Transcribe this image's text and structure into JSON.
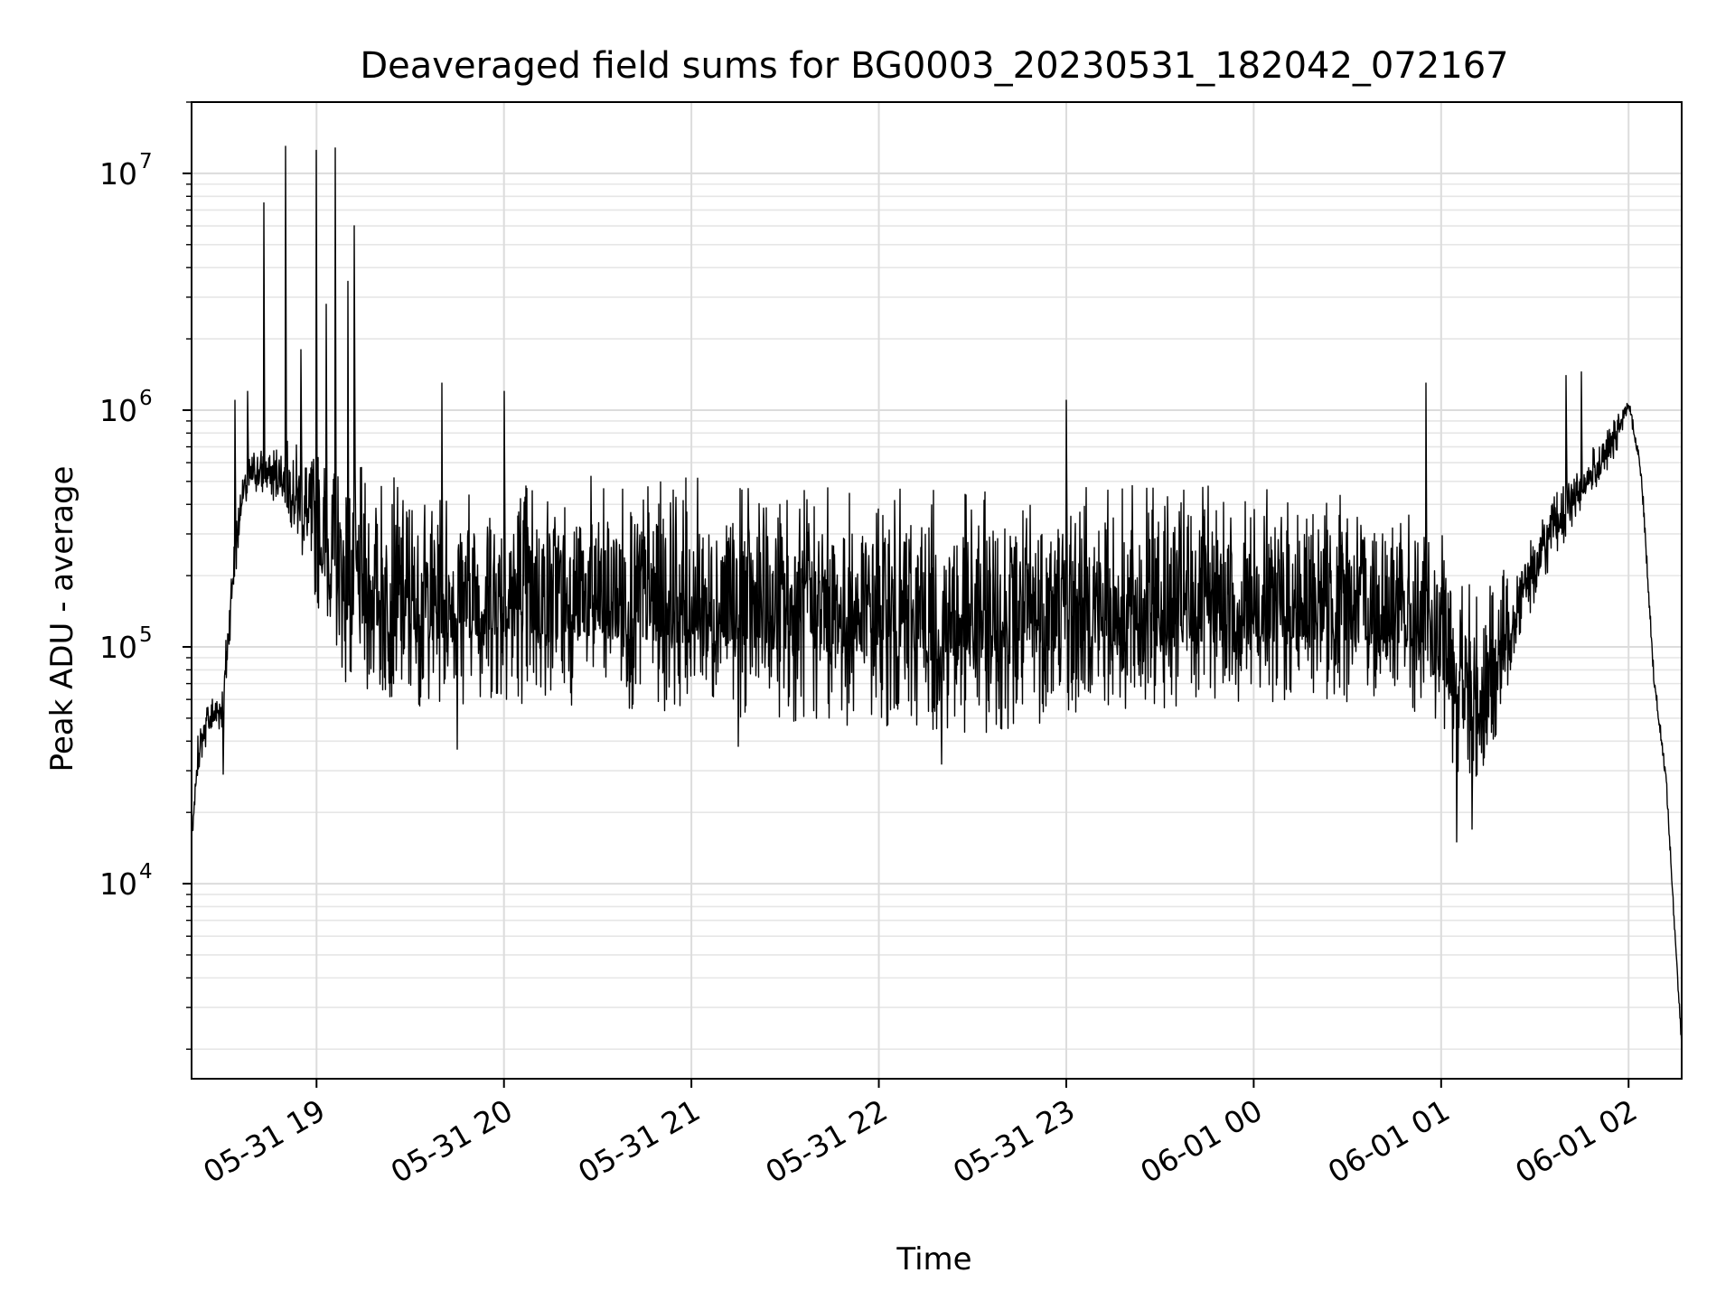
{
  "chart_data": {
    "type": "line",
    "title": "Deaveraged field sums for BG0003_20230531_182042_072167",
    "xlabel": "Time",
    "ylabel": "Peak ADU - average",
    "yscale": "log",
    "xlim": [
      "2023-05-31 18:20",
      "2023-06-01 02:17"
    ],
    "ylim": [
      1500,
      20000000
    ],
    "grid": true,
    "line_color": "#000000",
    "x_ticks": [
      {
        "value": "2023-05-31 19:00",
        "label": "05-31 19"
      },
      {
        "value": "2023-05-31 20:00",
        "label": "05-31 20"
      },
      {
        "value": "2023-05-31 21:00",
        "label": "05-31 21"
      },
      {
        "value": "2023-05-31 22:00",
        "label": "05-31 22"
      },
      {
        "value": "2023-05-31 23:00",
        "label": "05-31 23"
      },
      {
        "value": "2023-06-01 00:00",
        "label": "06-01 00"
      },
      {
        "value": "2023-06-01 01:00",
        "label": "06-01 01"
      },
      {
        "value": "2023-06-01 02:00",
        "label": "06-01 02"
      }
    ],
    "y_ticks": [
      {
        "value": 10000,
        "base": "10",
        "exp": "4"
      },
      {
        "value": 100000,
        "base": "10",
        "exp": "5"
      },
      {
        "value": 1000000,
        "base": "10",
        "exp": "6"
      },
      {
        "value": 10000000,
        "base": "10",
        "exp": "7"
      }
    ],
    "envelope": [
      {
        "t": "2023-05-31 18:20",
        "lo": 15000,
        "hi": 15000
      },
      {
        "t": "2023-05-31 18:22",
        "lo": 30000,
        "hi": 42000
      },
      {
        "t": "2023-05-31 18:25",
        "lo": 40000,
        "hi": 60000
      },
      {
        "t": "2023-05-31 18:30",
        "lo": 45000,
        "hi": 75000
      },
      {
        "t": "2023-05-31 18:33",
        "lo": 150000,
        "hi": 250000
      },
      {
        "t": "2023-05-31 18:36",
        "lo": 350000,
        "hi": 550000
      },
      {
        "t": "2023-05-31 18:40",
        "lo": 450000,
        "hi": 700000
      },
      {
        "t": "2023-05-31 18:50",
        "lo": 380000,
        "hi": 750000
      },
      {
        "t": "2023-05-31 19:00",
        "lo": 150000,
        "hi": 700000
      },
      {
        "t": "2023-05-31 19:10",
        "lo": 65000,
        "hi": 600000
      },
      {
        "t": "2023-05-31 19:30",
        "lo": 55000,
        "hi": 500000
      },
      {
        "t": "2023-05-31 20:00",
        "lo": 58000,
        "hi": 550000
      },
      {
        "t": "2023-05-31 21:00",
        "lo": 52000,
        "hi": 520000
      },
      {
        "t": "2023-05-31 22:00",
        "lo": 45000,
        "hi": 470000
      },
      {
        "t": "2023-05-31 22:30",
        "lo": 42000,
        "hi": 450000
      },
      {
        "t": "2023-05-31 23:00",
        "lo": 50000,
        "hi": 480000
      },
      {
        "t": "2023-06-01 00:00",
        "lo": 55000,
        "hi": 480000
      },
      {
        "t": "2023-06-01 00:45",
        "lo": 60000,
        "hi": 420000
      },
      {
        "t": "2023-06-01 01:00",
        "lo": 40000,
        "hi": 300000
      },
      {
        "t": "2023-06-01 01:10",
        "lo": 22000,
        "hi": 200000
      },
      {
        "t": "2023-06-01 01:15",
        "lo": 30000,
        "hi": 180000
      },
      {
        "t": "2023-06-01 01:25",
        "lo": 110000,
        "hi": 250000
      },
      {
        "t": "2023-06-01 01:35",
        "lo": 220000,
        "hi": 420000
      },
      {
        "t": "2023-06-01 01:45",
        "lo": 380000,
        "hi": 600000
      },
      {
        "t": "2023-06-01 01:55",
        "lo": 600000,
        "hi": 900000
      },
      {
        "t": "2023-06-01 02:00",
        "lo": 1000000,
        "hi": 1150000
      },
      {
        "t": "2023-06-01 02:04",
        "lo": 500000,
        "hi": 600000
      },
      {
        "t": "2023-06-01 02:08",
        "lo": 70000,
        "hi": 80000
      },
      {
        "t": "2023-06-01 02:12",
        "lo": 25000,
        "hi": 30000
      },
      {
        "t": "2023-06-01 02:15",
        "lo": 5000,
        "hi": 6000
      },
      {
        "t": "2023-06-01 02:17",
        "lo": 2000,
        "hi": 2000
      }
    ],
    "spikes": [
      {
        "t": "2023-05-31 18:34",
        "value": 1100000
      },
      {
        "t": "2023-05-31 18:38",
        "value": 1200000
      },
      {
        "t": "2023-05-31 18:43",
        "value": 7500000
      },
      {
        "t": "2023-05-31 18:50",
        "value": 13000000
      },
      {
        "t": "2023-05-31 18:55",
        "value": 1800000
      },
      {
        "t": "2023-05-31 19:00",
        "value": 12500000
      },
      {
        "t": "2023-05-31 19:03",
        "value": 2800000
      },
      {
        "t": "2023-05-31 19:06",
        "value": 12800000
      },
      {
        "t": "2023-05-31 19:10",
        "value": 3500000
      },
      {
        "t": "2023-05-31 19:12",
        "value": 6000000
      },
      {
        "t": "2023-05-31 19:40",
        "value": 1300000
      },
      {
        "t": "2023-05-31 20:00",
        "value": 1200000
      },
      {
        "t": "2023-05-31 23:00",
        "value": 1100000
      },
      {
        "t": "2023-06-01 00:55",
        "value": 1300000
      },
      {
        "t": "2023-06-01 01:40",
        "value": 1400000
      },
      {
        "t": "2023-06-01 01:45",
        "value": 1450000
      }
    ],
    "dips": [
      {
        "t": "2023-05-31 18:30",
        "value": 29000
      },
      {
        "t": "2023-05-31 19:45",
        "value": 37000
      },
      {
        "t": "2023-05-31 21:15",
        "value": 38000
      },
      {
        "t": "2023-05-31 22:20",
        "value": 32000
      },
      {
        "t": "2023-06-01 01:05",
        "value": 15000
      },
      {
        "t": "2023-06-01 01:10",
        "value": 17000
      }
    ]
  }
}
